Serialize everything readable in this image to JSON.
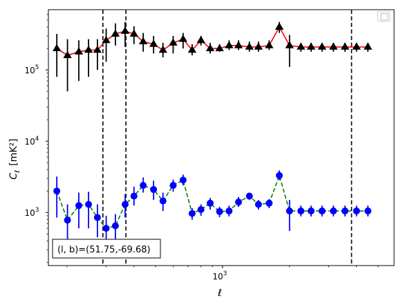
{
  "chart_data": {
    "type": "scatter",
    "title": "",
    "xlabel": "ℓ",
    "ylabel_main": "C",
    "ylabel_sub": "ℓ",
    "ylabel_unit": "[mK²]",
    "xscale": "log",
    "yscale": "log",
    "xlim": [
      165,
      5900
    ],
    "ylim": [
      180,
      700000
    ],
    "x_ticks": [
      {
        "value": 1000,
        "base": "10",
        "exp": "3"
      }
    ],
    "y_ticks": [
      {
        "value": 1000,
        "base": "10",
        "exp": "3"
      },
      {
        "value": 10000,
        "base": "10",
        "exp": "4"
      },
      {
        "value": 100000,
        "base": "10",
        "exp": "5"
      }
    ],
    "vlines": [
      290,
      368,
      3800
    ],
    "annotation": "(l, b)=(51.75,-69.68)",
    "legend_location": "top-right",
    "series": [
      {
        "marker": "triangle",
        "color": "#000000",
        "line_color": "#ff0000",
        "line_style": "solid",
        "x": [
          180,
          201,
          226,
          250,
          274,
          300,
          330,
          365,
          400,
          440,
          490,
          540,
          600,
          665,
          730,
          800,
          880,
          970,
          1070,
          1180,
          1320,
          1450,
          1620,
          1800,
          2000,
          2250,
          2500,
          2800,
          3150,
          3550,
          4000,
          4500
        ],
        "y": [
          200000,
          160000,
          180000,
          190000,
          190000,
          260000,
          320000,
          350000,
          320000,
          250000,
          230000,
          190000,
          240000,
          270000,
          190000,
          260000,
          200000,
          200000,
          220000,
          220000,
          210000,
          210000,
          220000,
          400000,
          220000,
          210000,
          210000,
          210000,
          210000,
          210000,
          210000,
          210000
        ],
        "y_low": [
          80000,
          50000,
          70000,
          80000,
          100000,
          130000,
          220000,
          210000,
          230000,
          180000,
          170000,
          150000,
          170000,
          200000,
          160000,
          220000,
          170000,
          180000,
          190000,
          190000,
          180000,
          180000,
          190000,
          330000,
          110000,
          180000,
          180000,
          180000,
          180000,
          180000,
          180000,
          180000
        ],
        "y_high": [
          320000,
          270000,
          260000,
          270000,
          270000,
          380000,
          450000,
          470000,
          410000,
          330000,
          300000,
          240000,
          300000,
          330000,
          230000,
          300000,
          240000,
          230000,
          260000,
          260000,
          250000,
          250000,
          260000,
          470000,
          310000,
          240000,
          240000,
          240000,
          240000,
          240000,
          240000,
          240000
        ]
      },
      {
        "marker": "circle",
        "color": "#0000ff",
        "line_color": "#008000",
        "line_style": "dashed",
        "x": [
          180,
          201,
          226,
          250,
          274,
          300,
          330,
          365,
          400,
          440,
          490,
          540,
          600,
          665,
          730,
          800,
          880,
          970,
          1070,
          1180,
          1320,
          1450,
          1620,
          1800,
          2000,
          2250,
          2500,
          2800,
          3150,
          3550,
          4000,
          4500
        ],
        "y": [
          2000,
          780,
          1250,
          1300,
          850,
          600,
          650,
          1300,
          1700,
          2400,
          2100,
          1450,
          2400,
          2850,
          970,
          1100,
          1350,
          1030,
          1050,
          1400,
          1700,
          1300,
          1350,
          3300,
          1050,
          1050,
          1050,
          1050,
          1050,
          1050,
          1050,
          1050
        ],
        "y_low": [
          850,
          350,
          600,
          600,
          450,
          350,
          400,
          850,
          1250,
          1900,
          1500,
          1050,
          1950,
          2400,
          790,
          900,
          1100,
          860,
          880,
          1200,
          1500,
          1100,
          1150,
          2850,
          550,
          880,
          880,
          880,
          880,
          880,
          880,
          880
        ],
        "y_high": [
          3200,
          1300,
          1900,
          1950,
          1300,
          900,
          950,
          1800,
          2300,
          3100,
          2800,
          1900,
          2900,
          3400,
          1150,
          1300,
          1600,
          1200,
          1250,
          1650,
          1900,
          1500,
          1550,
          3900,
          1500,
          1250,
          1250,
          1250,
          1250,
          1250,
          1250,
          1250
        ]
      }
    ]
  }
}
